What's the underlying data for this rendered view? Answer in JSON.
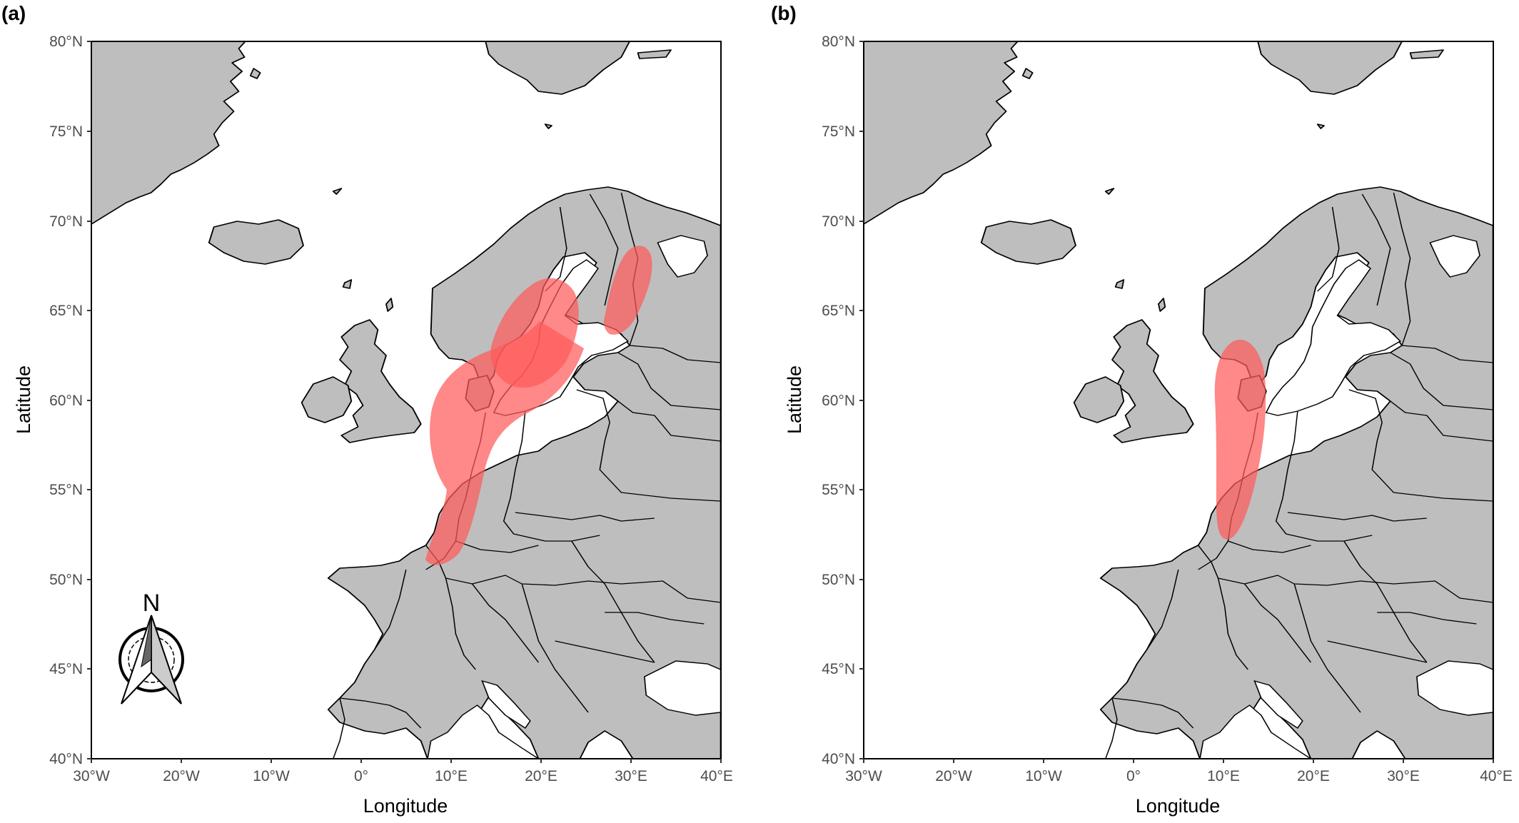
{
  "panels": [
    {
      "id": "a",
      "tag": "(a)",
      "xlabel": "Longitude",
      "ylabel": "Latitude",
      "x_ticks": [
        "30°W",
        "20°W",
        "10°W",
        "0°",
        "10°E",
        "20°E",
        "30°E",
        "40°E"
      ],
      "y_ticks": [
        "40°N",
        "45°N",
        "50°N",
        "55°N",
        "60°N",
        "65°N",
        "70°N",
        "75°N",
        "80°N"
      ],
      "north_arrow": {
        "label": "N",
        "icon": "north-arrow-compass-icon"
      },
      "highlight_areas": [
        "north-sea-west-norway-area",
        "gulf-of-bothnia-area",
        "southern-norway-sweden-area"
      ]
    },
    {
      "id": "b",
      "tag": "(b)",
      "xlabel": "Longitude",
      "ylabel": "Latitude",
      "x_ticks": [
        "30°W",
        "20°W",
        "10°W",
        "0°",
        "10°E",
        "20°E",
        "30°E",
        "40°E"
      ],
      "y_ticks": [
        "40°N",
        "45°N",
        "50°N",
        "55°N",
        "60°N",
        "65°N",
        "70°N",
        "75°N",
        "80°N"
      ],
      "highlight_areas": [
        "southern-north-sea-area"
      ]
    }
  ],
  "map_extent": {
    "lon": [
      -30,
      40
    ],
    "lat": [
      40,
      80
    ]
  },
  "colors": {
    "land": "#bebebe",
    "highlight": "#ff5a5a",
    "sea": "#ffffff",
    "outline": "#000000"
  }
}
